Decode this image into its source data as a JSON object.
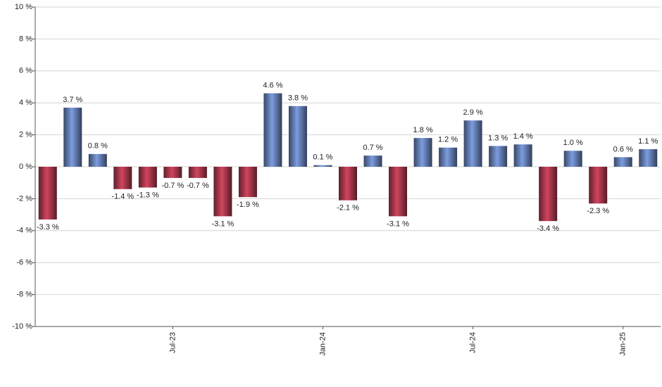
{
  "chart_data": {
    "type": "bar",
    "categories": [
      null,
      null,
      null,
      null,
      null,
      "Jul-23",
      null,
      null,
      null,
      null,
      null,
      "Jan-24",
      null,
      null,
      null,
      null,
      null,
      "Jul-24",
      null,
      null,
      null,
      null,
      null,
      "Jan-25",
      null
    ],
    "values": [
      -3.3,
      3.7,
      0.8,
      -1.4,
      -1.3,
      -0.7,
      -0.7,
      -3.1,
      -1.9,
      4.6,
      3.8,
      0.1,
      -2.1,
      0.7,
      -3.1,
      1.8,
      1.2,
      2.9,
      1.3,
      1.4,
      -3.4,
      1.0,
      -2.3,
      0.6,
      1.1
    ],
    "value_labels": [
      "-3.3 %",
      "3.7 %",
      "0.8 %",
      "-1.4 %",
      "-1.3 %",
      "-0.7 %",
      "-0.7 %",
      "-3.1 %",
      "-1.9 %",
      "4.6 %",
      "3.8 %",
      "0.1 %",
      "-2.1 %",
      "0.7 %",
      "-3.1 %",
      "1.8 %",
      "1.2 %",
      "2.9 %",
      "1.3 %",
      "1.4 %",
      "-3.4 %",
      "1.0 %",
      "-2.3 %",
      "0.6 %",
      "1.1 %"
    ],
    "positive_color": "#7d9de0",
    "negative_color": "#d2455f",
    "ylim": [
      -10,
      10
    ],
    "yticks": [
      {
        "value": -10,
        "label": "-10 %"
      },
      {
        "value": -8,
        "label": "-8 %"
      },
      {
        "value": -6,
        "label": "-6 %"
      },
      {
        "value": -4,
        "label": "-4 %"
      },
      {
        "value": -2,
        "label": "-2 %"
      },
      {
        "value": 0,
        "label": "0 %"
      },
      {
        "value": 2,
        "label": "2 %"
      },
      {
        "value": 4,
        "label": "4 %"
      },
      {
        "value": 6,
        "label": "6 %"
      },
      {
        "value": 8,
        "label": "8 %"
      },
      {
        "value": 10,
        "label": "10 %"
      }
    ],
    "grid": true
  }
}
